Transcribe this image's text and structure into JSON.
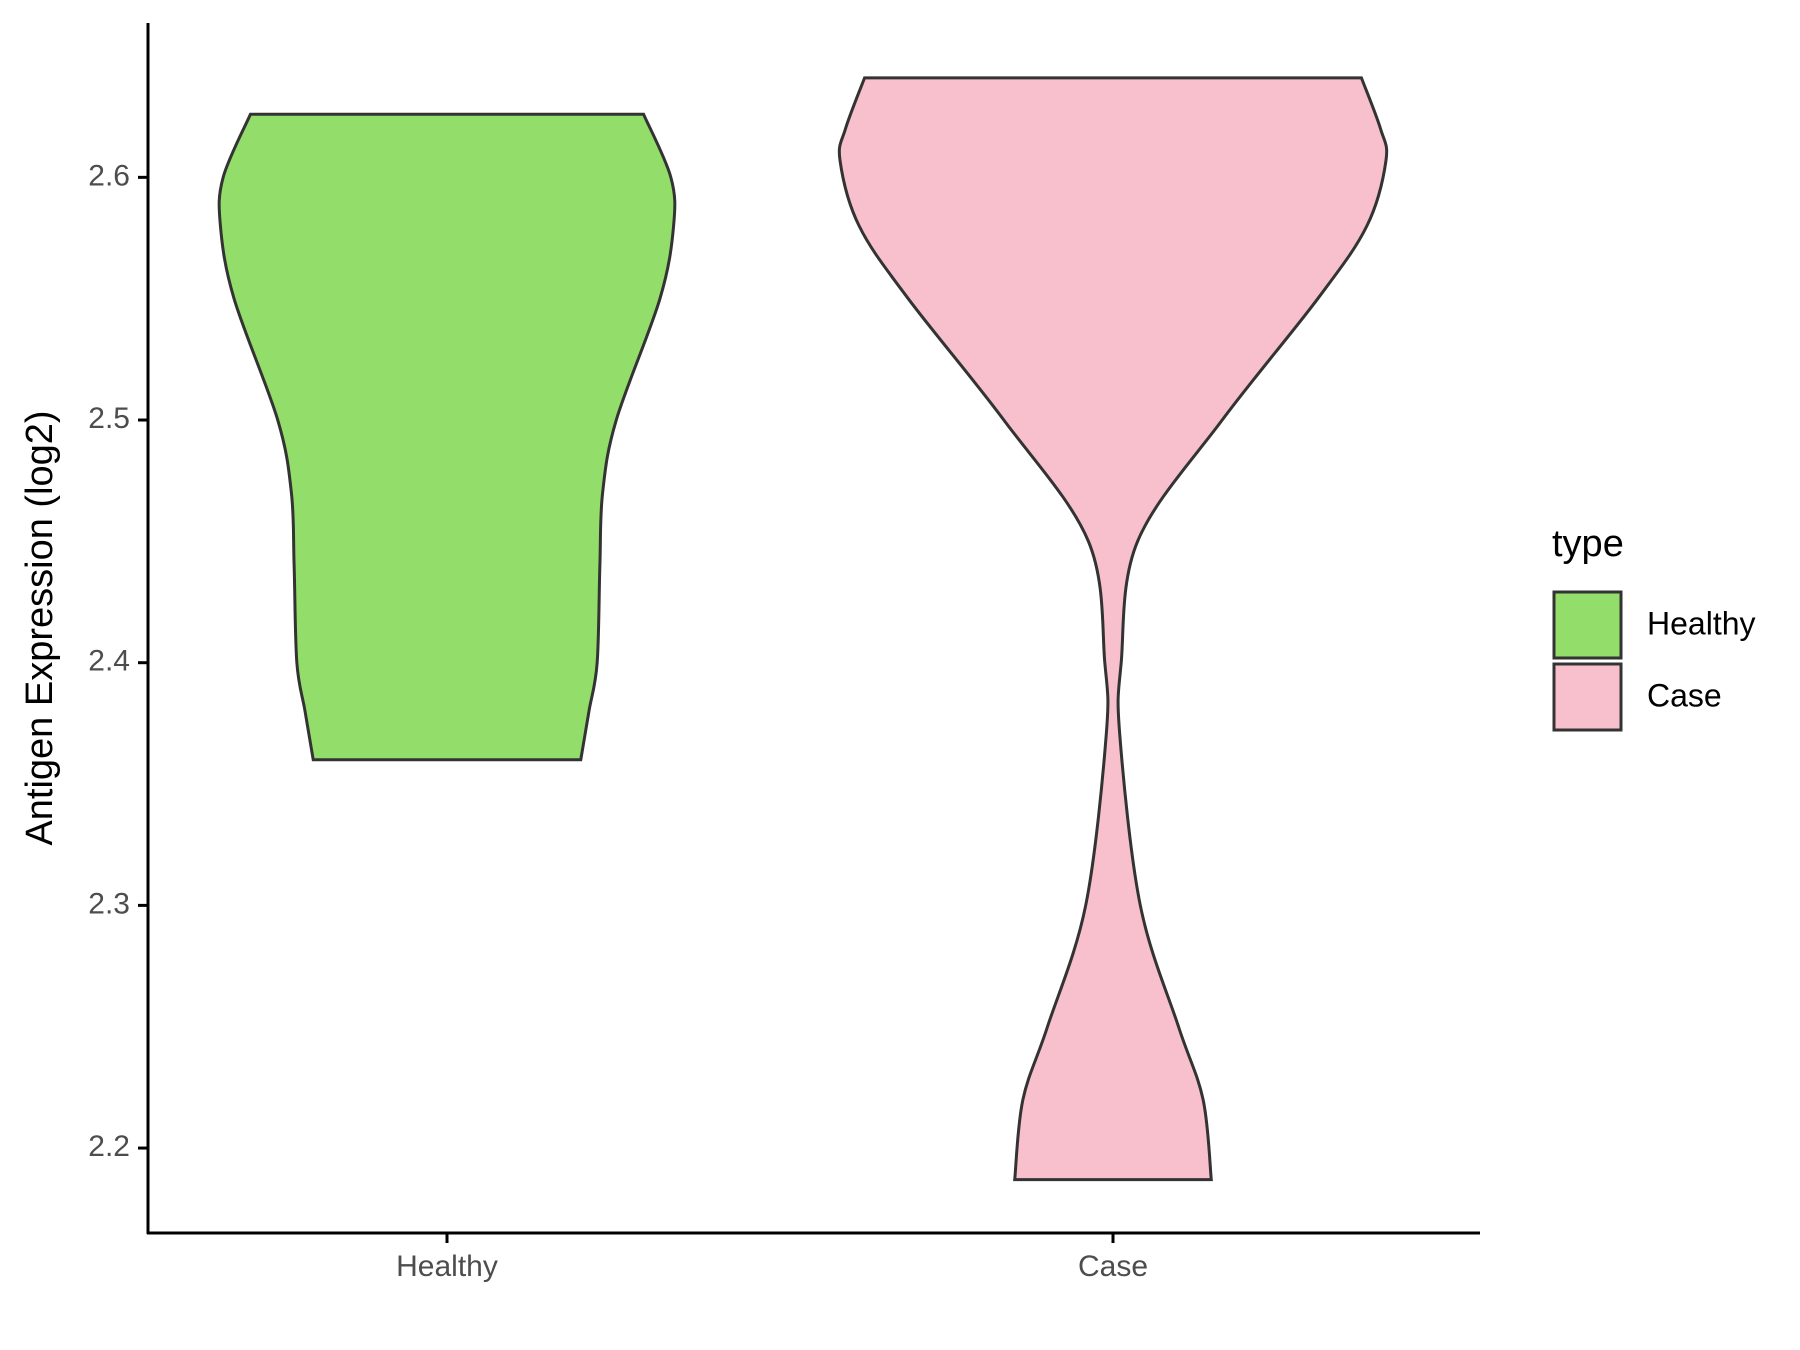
{
  "chart_data": {
    "type": "violin",
    "y_label": "Antigen Expression (log2)",
    "categories": [
      "Healthy",
      "Case"
    ],
    "legend_title": "type",
    "legend_position": "right",
    "ylim": [
      2.165,
      2.6636
    ],
    "yticks": [
      2.2,
      2.3,
      2.4,
      2.5,
      2.6
    ],
    "series": [
      {
        "name": "Healthy",
        "color": "#93dd6a",
        "y": [
          2.626,
          2.6,
          2.58,
          2.55,
          2.5,
          2.47,
          2.44,
          2.4,
          2.38,
          2.36
        ],
        "density": [
          0.72,
          0.82,
          0.83,
          0.78,
          0.62,
          0.57,
          0.56,
          0.55,
          0.52,
          0.49
        ]
      },
      {
        "name": "Case",
        "color": "#f7c0cc",
        "y": [
          2.641,
          2.62,
          2.607,
          2.58,
          2.55,
          2.5,
          2.45,
          2.4,
          2.37,
          2.3,
          2.25,
          2.22,
          2.187
        ],
        "density": [
          0.91,
          0.98,
          1.0,
          0.93,
          0.75,
          0.4,
          0.09,
          0.03,
          0.025,
          0.1,
          0.24,
          0.33,
          0.36
        ]
      }
    ]
  }
}
